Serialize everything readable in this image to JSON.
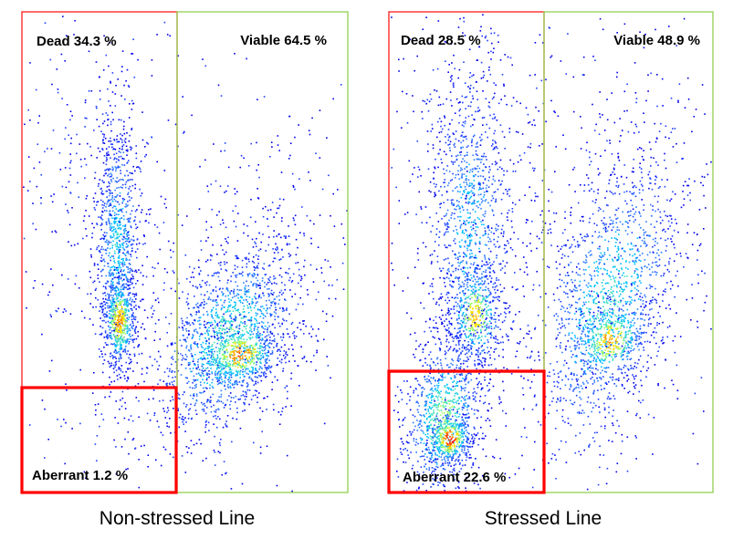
{
  "chart_data": [
    {
      "type": "scatter",
      "caption": "Non-stressed Line",
      "gates": [
        {
          "label": "Dead 34.3 %",
          "population": "Dead",
          "percent": 34.3,
          "color": "#ff1a1a"
        },
        {
          "label": "Viable 64.5 %",
          "population": "Viable",
          "percent": 64.5,
          "color": "#92d050"
        },
        {
          "label": "Aberrant 1.2 %",
          "population": "Aberrant",
          "percent": 1.2,
          "color": "#ff0000"
        }
      ]
    },
    {
      "type": "scatter",
      "caption": "Stressed Line",
      "gates": [
        {
          "label": "Dead 28.5 %",
          "population": "Dead",
          "percent": 28.5,
          "color": "#ff1a1a"
        },
        {
          "label": "Viable 48.9 %",
          "population": "Viable",
          "percent": 48.9,
          "color": "#92d050"
        },
        {
          "label": "Aberrant 22.6 %",
          "population": "Aberrant",
          "percent": 22.6,
          "color": "#ff0000"
        }
      ]
    }
  ],
  "colors": {
    "density_low": "#0000ee",
    "density_mid": "#00bfff",
    "density_high": "#ffe000",
    "density_peak": "#ff2000"
  }
}
